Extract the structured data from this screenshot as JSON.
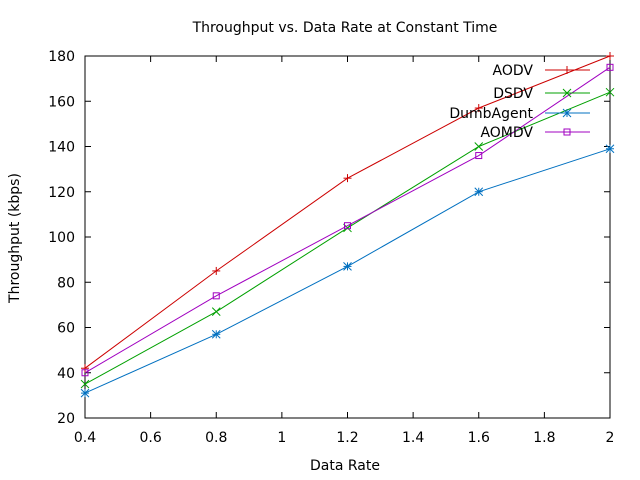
{
  "chart_data": {
    "type": "line",
    "title": "Throughput vs. Data Rate at Constant Time",
    "xlabel": "Data Rate",
    "ylabel": "Throughput (kbps)",
    "xlim": [
      0.4,
      2
    ],
    "ylim": [
      20,
      180
    ],
    "x_ticks": [
      0.4,
      0.6,
      0.8,
      1,
      1.2,
      1.4,
      1.6,
      1.8,
      2
    ],
    "x_tick_labels": [
      "0.4",
      "0.6",
      "0.8",
      "1",
      "1.2",
      "1.4",
      "1.6",
      "1.8",
      "2"
    ],
    "y_ticks": [
      20,
      40,
      60,
      80,
      100,
      120,
      140,
      160,
      180
    ],
    "y_tick_labels": [
      "20",
      "40",
      "60",
      "80",
      "100",
      "120",
      "140",
      "160",
      "180"
    ],
    "grid": false,
    "legend_position": "top-right",
    "x": [
      0.4,
      0.8,
      1.2,
      1.6,
      2.0
    ],
    "series": [
      {
        "name": "AODV",
        "color": "#cc0000",
        "marker": "plus",
        "values": [
          42,
          85,
          126,
          157,
          180
        ]
      },
      {
        "name": "DSDV",
        "color": "#00a000",
        "marker": "cross",
        "values": [
          35,
          67,
          104,
          140,
          164
        ]
      },
      {
        "name": "DumbAgent",
        "color": "#0070c0",
        "marker": "star",
        "values": [
          31,
          57,
          87,
          120,
          139
        ]
      },
      {
        "name": "AOMDV",
        "color": "#a000c0",
        "marker": "square",
        "values": [
          40,
          74,
          105,
          136,
          175
        ]
      }
    ]
  }
}
